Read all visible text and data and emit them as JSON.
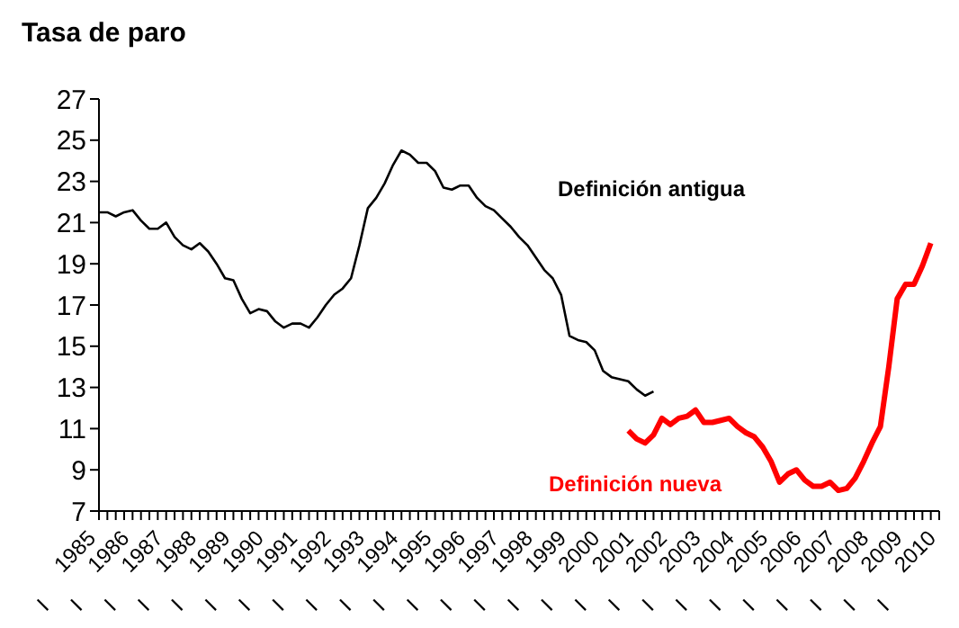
{
  "chart_data": {
    "type": "line",
    "title": "Tasa de paro",
    "xlim": [
      1985,
      2010
    ],
    "xticks": [
      {
        "value": 1985,
        "label": "1985\nI"
      },
      {
        "value": 1985.25,
        "label": null
      },
      {
        "value": 1985.5,
        "label": null
      },
      {
        "value": 1985.75,
        "label": null
      },
      {
        "value": 1986,
        "label": "1986\nI"
      },
      {
        "value": 1986.25,
        "label": null
      },
      {
        "value": 1986.5,
        "label": null
      },
      {
        "value": 1986.75,
        "label": null
      },
      {
        "value": 1987,
        "label": "1987\nI"
      },
      {
        "value": 1987.25,
        "label": null
      },
      {
        "value": 1987.5,
        "label": null
      },
      {
        "value": 1987.75,
        "label": null
      },
      {
        "value": 1988,
        "label": "1988\nI"
      },
      {
        "value": 1988.25,
        "label": null
      },
      {
        "value": 1988.5,
        "label": null
      },
      {
        "value": 1988.75,
        "label": null
      },
      {
        "value": 1989,
        "label": "1989\nI"
      },
      {
        "value": 1989.25,
        "label": null
      },
      {
        "value": 1989.5,
        "label": null
      },
      {
        "value": 1989.75,
        "label": null
      },
      {
        "value": 1990,
        "label": "1990\nI"
      },
      {
        "value": 1990.25,
        "label": null
      },
      {
        "value": 1990.5,
        "label": null
      },
      {
        "value": 1990.75,
        "label": null
      },
      {
        "value": 1991,
        "label": "1991\nI"
      },
      {
        "value": 1991.25,
        "label": null
      },
      {
        "value": 1991.5,
        "label": null
      },
      {
        "value": 1991.75,
        "label": null
      },
      {
        "value": 1992,
        "label": "1992\nI"
      },
      {
        "value": 1992.25,
        "label": null
      },
      {
        "value": 1992.5,
        "label": null
      },
      {
        "value": 1992.75,
        "label": null
      },
      {
        "value": 1993,
        "label": "1993\nI"
      },
      {
        "value": 1993.25,
        "label": null
      },
      {
        "value": 1993.5,
        "label": null
      },
      {
        "value": 1993.75,
        "label": null
      },
      {
        "value": 1994,
        "label": "1994\nI"
      },
      {
        "value": 1994.25,
        "label": null
      },
      {
        "value": 1994.5,
        "label": null
      },
      {
        "value": 1994.75,
        "label": null
      },
      {
        "value": 1995,
        "label": "1995\nI"
      },
      {
        "value": 1995.25,
        "label": null
      },
      {
        "value": 1995.5,
        "label": null
      },
      {
        "value": 1995.75,
        "label": null
      },
      {
        "value": 1996,
        "label": "1996\nI"
      },
      {
        "value": 1996.25,
        "label": null
      },
      {
        "value": 1996.5,
        "label": null
      },
      {
        "value": 1996.75,
        "label": null
      },
      {
        "value": 1997,
        "label": "1997\nI"
      },
      {
        "value": 1997.25,
        "label": null
      },
      {
        "value": 1997.5,
        "label": null
      },
      {
        "value": 1997.75,
        "label": null
      },
      {
        "value": 1998,
        "label": "1998\nI"
      },
      {
        "value": 1998.25,
        "label": null
      },
      {
        "value": 1998.5,
        "label": null
      },
      {
        "value": 1998.75,
        "label": null
      },
      {
        "value": 1999,
        "label": "1999\nI"
      },
      {
        "value": 1999.25,
        "label": null
      },
      {
        "value": 1999.5,
        "label": null
      },
      {
        "value": 1999.75,
        "label": null
      },
      {
        "value": 2000,
        "label": "2000\nI"
      },
      {
        "value": 2000.25,
        "label": null
      },
      {
        "value": 2000.5,
        "label": null
      },
      {
        "value": 2000.75,
        "label": null
      },
      {
        "value": 2001,
        "label": "2001\nI"
      },
      {
        "value": 2001.25,
        "label": null
      },
      {
        "value": 2001.5,
        "label": null
      },
      {
        "value": 2001.75,
        "label": null
      },
      {
        "value": 2002,
        "label": "2002\nI"
      },
      {
        "value": 2002.25,
        "label": null
      },
      {
        "value": 2002.5,
        "label": null
      },
      {
        "value": 2002.75,
        "label": null
      },
      {
        "value": 2003,
        "label": "2003\nI"
      },
      {
        "value": 2003.25,
        "label": null
      },
      {
        "value": 2003.5,
        "label": null
      },
      {
        "value": 2003.75,
        "label": null
      },
      {
        "value": 2004,
        "label": "2004\nI"
      },
      {
        "value": 2004.25,
        "label": null
      },
      {
        "value": 2004.5,
        "label": null
      },
      {
        "value": 2004.75,
        "label": null
      },
      {
        "value": 2005,
        "label": "2005\nI"
      },
      {
        "value": 2005.25,
        "label": null
      },
      {
        "value": 2005.5,
        "label": null
      },
      {
        "value": 2005.75,
        "label": null
      },
      {
        "value": 2006,
        "label": "2006\nI"
      },
      {
        "value": 2006.25,
        "label": null
      },
      {
        "value": 2006.5,
        "label": null
      },
      {
        "value": 2006.75,
        "label": null
      },
      {
        "value": 2007,
        "label": "2007\nI"
      },
      {
        "value": 2007.25,
        "label": null
      },
      {
        "value": 2007.5,
        "label": null
      },
      {
        "value": 2007.75,
        "label": null
      },
      {
        "value": 2008,
        "label": "2008\nI"
      },
      {
        "value": 2008.25,
        "label": null
      },
      {
        "value": 2008.5,
        "label": null
      },
      {
        "value": 2008.75,
        "label": null
      },
      {
        "value": 2009,
        "label": "2009\nI"
      },
      {
        "value": 2009.25,
        "label": null
      },
      {
        "value": 2009.5,
        "label": null
      },
      {
        "value": 2009.75,
        "label": null
      },
      {
        "value": 2010,
        "label": "2010\nI"
      }
    ],
    "ylim": [
      7,
      27
    ],
    "yticks": [
      7,
      9,
      11,
      13,
      15,
      17,
      19,
      21,
      23,
      25,
      27
    ],
    "marker": "none",
    "line_style": "solid",
    "series": [
      {
        "name": "Definición antigua",
        "color": "#000000",
        "x": [
          1985,
          1985.25,
          1985.5,
          1985.75,
          1986,
          1986.25,
          1986.5,
          1986.75,
          1987,
          1987.25,
          1987.5,
          1987.75,
          1988,
          1988.25,
          1988.5,
          1988.75,
          1989,
          1989.25,
          1989.5,
          1989.75,
          1990,
          1990.25,
          1990.5,
          1990.75,
          1991,
          1991.25,
          1991.5,
          1991.75,
          1992,
          1992.25,
          1992.5,
          1992.75,
          1993,
          1993.25,
          1993.5,
          1993.75,
          1994,
          1994.25,
          1994.5,
          1994.75,
          1995,
          1995.25,
          1995.5,
          1995.75,
          1996,
          1996.25,
          1996.5,
          1996.75,
          1997,
          1997.25,
          1997.5,
          1997.75,
          1998,
          1998.25,
          1998.5,
          1998.75,
          1999,
          1999.25,
          1999.5,
          1999.75,
          2000,
          2000.25,
          2000.5,
          2000.75,
          2001,
          2001.25,
          2001.5
        ],
        "values": [
          21.5,
          21.5,
          21.3,
          21.5,
          21.6,
          21.1,
          20.7,
          20.7,
          21.0,
          20.3,
          19.9,
          19.7,
          20.0,
          19.6,
          19.0,
          18.3,
          18.2,
          17.3,
          16.6,
          16.8,
          16.7,
          16.2,
          15.9,
          16.1,
          16.1,
          15.9,
          16.4,
          17.0,
          17.5,
          17.8,
          18.3,
          19.9,
          21.7,
          22.2,
          22.9,
          23.8,
          24.5,
          24.3,
          23.9,
          23.9,
          23.5,
          22.7,
          22.6,
          22.8,
          22.8,
          22.2,
          21.8,
          21.6,
          21.2,
          20.8,
          20.3,
          19.9,
          19.3,
          18.7,
          18.3,
          17.5,
          15.5,
          15.3,
          15.2,
          14.8,
          13.8,
          13.5,
          13.4,
          13.3,
          12.9,
          12.6,
          12.8
        ]
      },
      {
        "name": "Definición nueva",
        "color": "#ff0000",
        "x": [
          2000.75,
          2001,
          2001.25,
          2001.5,
          2001.75,
          2002,
          2002.25,
          2002.5,
          2002.75,
          2003,
          2003.25,
          2003.5,
          2003.75,
          2004,
          2004.25,
          2004.5,
          2004.75,
          2005,
          2005.25,
          2005.5,
          2005.75,
          2006,
          2006.25,
          2006.5,
          2006.75,
          2007,
          2007.25,
          2007.5,
          2007.75,
          2008,
          2008.25,
          2008.5,
          2008.75,
          2009,
          2009.25,
          2009.5,
          2009.75
        ],
        "values": [
          10.9,
          10.5,
          10.3,
          10.7,
          11.5,
          11.2,
          11.5,
          11.6,
          11.9,
          11.3,
          11.3,
          11.4,
          11.5,
          11.1,
          10.8,
          10.6,
          10.1,
          9.4,
          8.4,
          8.8,
          9.0,
          8.5,
          8.2,
          8.2,
          8.4,
          8.0,
          8.1,
          8.6,
          9.4,
          10.3,
          11.1,
          14.0,
          17.3,
          18.0,
          18.0,
          18.9,
          20.0
        ]
      }
    ]
  }
}
